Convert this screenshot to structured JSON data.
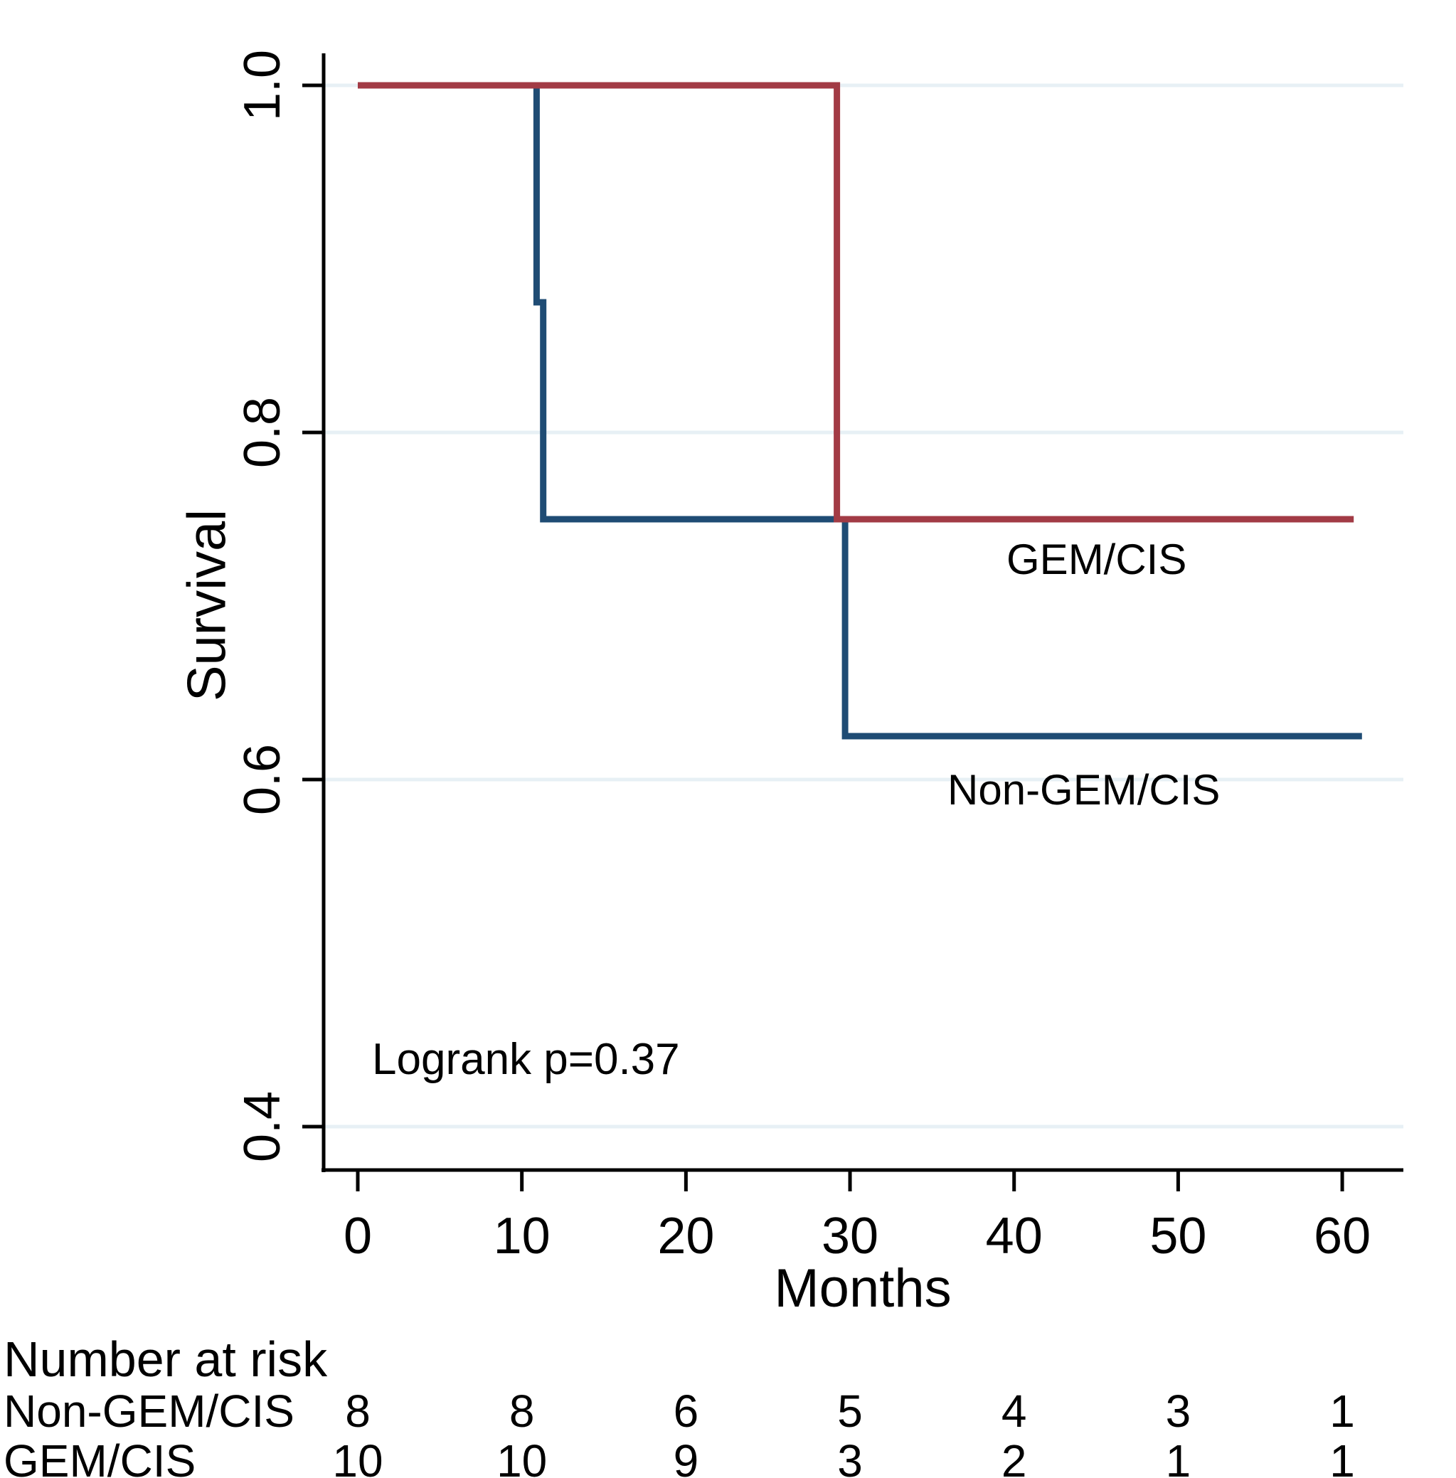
{
  "figure": {
    "background": "#ffffff"
  },
  "chart_data": {
    "type": "line",
    "subtype": "kaplan-meier-step",
    "title": "",
    "xlabel": "Months",
    "ylabel": "Survival",
    "xticks": [
      0,
      10,
      20,
      30,
      40,
      50,
      60
    ],
    "xtick_labels": [
      "0",
      "10",
      "20",
      "30",
      "40",
      "50",
      "60"
    ],
    "yticks": [
      1.0,
      0.8,
      0.6,
      0.4
    ],
    "ytick_labels": [
      "1.0",
      "0.8",
      "0.6",
      "0.4"
    ],
    "xlim": [
      0,
      63.7
    ],
    "ylim": [
      0.375,
      1.02
    ],
    "grid": "horizontal-at-yticks",
    "legend_position": "labels-on-plot",
    "annotation": "Logrank p=0.37",
    "colors": {
      "gem_cis": "#a23b45",
      "non_gem_cis": "#1f4c74",
      "gridline": "#e7f0f5",
      "axis": "#000000"
    },
    "series": [
      {
        "name": "Non-GEM/CIS",
        "color_key": "non_gem_cis",
        "steps": [
          [
            0,
            1.0
          ],
          [
            10.9,
            1.0
          ],
          [
            10.9,
            0.875
          ],
          [
            11.3,
            0.875
          ],
          [
            11.3,
            0.75
          ],
          [
            29.7,
            0.75
          ],
          [
            29.7,
            0.625
          ],
          [
            61.2,
            0.625
          ]
        ]
      },
      {
        "name": "GEM/CIS",
        "color_key": "gem_cis",
        "steps": [
          [
            0,
            1.0
          ],
          [
            29.2,
            1.0
          ],
          [
            29.2,
            0.75
          ],
          [
            60.7,
            0.75
          ]
        ]
      }
    ],
    "risk_table": {
      "title": "Number at risk",
      "time_points": [
        0,
        10,
        20,
        30,
        40,
        50,
        60
      ],
      "rows": [
        {
          "label": "Non-GEM/CIS",
          "values": [
            8,
            8,
            6,
            5,
            4,
            3,
            1
          ]
        },
        {
          "label": "GEM/CIS",
          "values": [
            10,
            10,
            9,
            3,
            2,
            1,
            1
          ]
        }
      ]
    }
  }
}
